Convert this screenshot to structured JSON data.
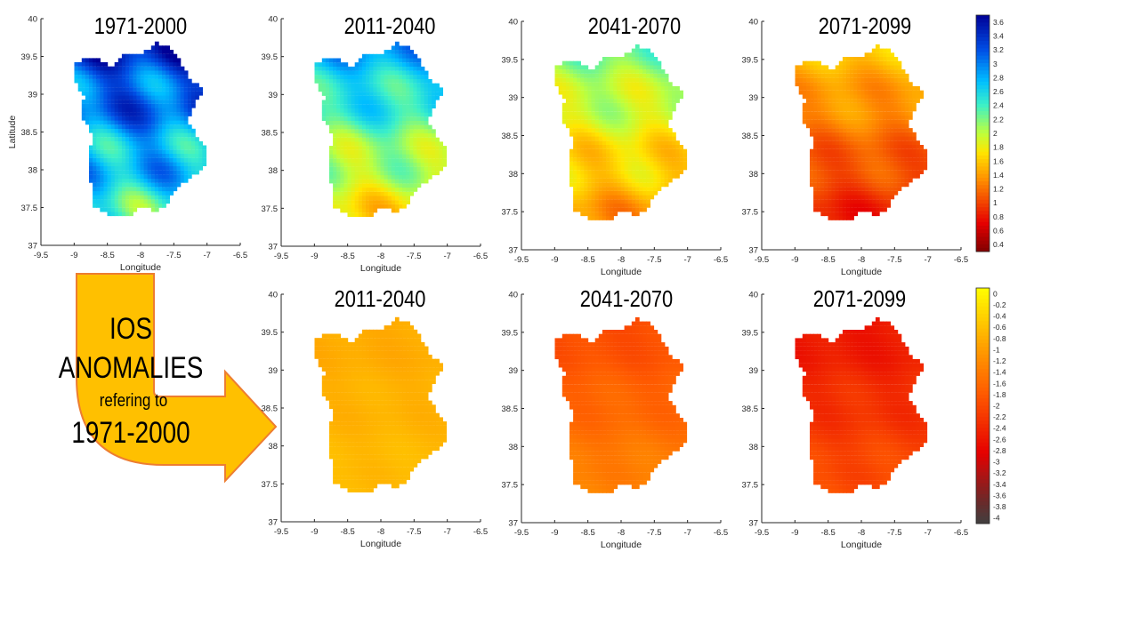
{
  "colors": {
    "background": "#ffffff",
    "arrow_fill": "#ffc000",
    "arrow_stroke": "#ed7d31",
    "text": "#000000",
    "axis": "#262626",
    "tick_text": "#262626"
  },
  "arrow": {
    "line1": "IOS",
    "line2": "ANOMALIES",
    "line3": "refering to",
    "line4": "1971-2000"
  },
  "colorbars": [
    {
      "id": "ios",
      "tick_labels": [
        "3.6",
        "3.4",
        "3.2",
        "3",
        "2.8",
        "2.6",
        "2.4",
        "2.2",
        "2",
        "1.8",
        "1.6",
        "1.4",
        "1.2",
        "1",
        "0.8",
        "0.6",
        "0.4"
      ],
      "range": [
        0.4,
        3.6
      ],
      "colormap": "jet"
    },
    {
      "id": "anomaly",
      "tick_labels": [
        "0",
        "-0.2",
        "-0.4",
        "-0.6",
        "-0.8",
        "-1",
        "-1.2",
        "-1.4",
        "-1.6",
        "-1.8",
        "-2",
        "-2.2",
        "-2.4",
        "-2.6",
        "-2.8",
        "-3",
        "-3.2",
        "-3.4",
        "-3.6",
        "-3.8",
        "-4"
      ],
      "range": [
        -4,
        0
      ],
      "colormap": "autumn-to-dark"
    }
  ],
  "chart_data": [
    {
      "type": "scatter",
      "title": "1971-2000",
      "xlabel": "Longitude",
      "ylabel": "Latitude",
      "xlim": [
        -9.5,
        -6.5
      ],
      "ylim": [
        37,
        40
      ],
      "xticks": [
        "-9.5",
        "-9",
        "-8.5",
        "-8",
        "-7.5",
        "-7",
        "-6.5"
      ],
      "yticks": [
        "37",
        "37.5",
        "38",
        "38.5",
        "39",
        "39.5",
        "40"
      ],
      "colorbar": "ios",
      "field": {
        "north_value": 3.3,
        "south_value": 2.4,
        "gradient": 0.6
      }
    },
    {
      "type": "scatter",
      "title": "2011-2040",
      "xlabel": "Longitude",
      "ylabel": "",
      "xlim": [
        -9.5,
        -6.5
      ],
      "ylim": [
        37,
        40
      ],
      "xticks": [
        "-9.5",
        "-9",
        "-8.5",
        "-8",
        "-7.5",
        "-7",
        "-6.5"
      ],
      "yticks": [
        "37",
        "37.5",
        "38",
        "38.5",
        "39",
        "39.5",
        "40"
      ],
      "colorbar": "ios",
      "field": {
        "north_value": 2.8,
        "south_value": 1.7,
        "gradient": 0.4
      }
    },
    {
      "type": "scatter",
      "title": "2041-2070",
      "xlabel": "Longitude",
      "ylabel": "",
      "xlim": [
        -9.5,
        -6.5
      ],
      "ylim": [
        37,
        40
      ],
      "xticks": [
        "-9.5",
        "-9",
        "-8.5",
        "-8",
        "-7.5",
        "-7",
        "-6.5"
      ],
      "yticks": [
        "37",
        "37.5",
        "38",
        "38.5",
        "39",
        "39.5",
        "40"
      ],
      "colorbar": "ios",
      "field": {
        "north_value": 2.2,
        "south_value": 1.4,
        "gradient": 0.3
      }
    },
    {
      "type": "scatter",
      "title": "2071-2099",
      "xlabel": "Longitude",
      "ylabel": "",
      "xlim": [
        -9.5,
        -6.5
      ],
      "ylim": [
        37,
        40
      ],
      "xticks": [
        "-9.5",
        "-9",
        "-8.5",
        "-8",
        "-7.5",
        "-7",
        "-6.5"
      ],
      "yticks": [
        "37",
        "37.5",
        "38",
        "38.5",
        "39",
        "39.5",
        "40"
      ],
      "colorbar": "ios",
      "field": {
        "north_value": 1.6,
        "south_value": 0.9,
        "gradient": 0.2
      }
    },
    {
      "type": "scatter",
      "title": "2011-2040",
      "xlabel": "Longitude",
      "ylabel": "",
      "xlim": [
        -9.5,
        -6.5
      ],
      "ylim": [
        37,
        40
      ],
      "xticks": [
        "-9.5",
        "-9",
        "-8.5",
        "-8",
        "-7.5",
        "-7",
        "-6.5"
      ],
      "yticks": [
        "37",
        "37.5",
        "38",
        "38.5",
        "39",
        "39.5",
        "40"
      ],
      "colorbar": "anomaly",
      "field": {
        "north_value": -0.9,
        "south_value": -0.7,
        "gradient": 0.1
      }
    },
    {
      "type": "scatter",
      "title": "2041-2070",
      "xlabel": "Longitude",
      "ylabel": "",
      "xlim": [
        -9.5,
        -6.5
      ],
      "ylim": [
        37,
        40
      ],
      "xticks": [
        "-9.5",
        "-9",
        "-8.5",
        "-8",
        "-7.5",
        "-7",
        "-6.5"
      ],
      "yticks": [
        "37",
        "37.5",
        "38",
        "38.5",
        "39",
        "39.5",
        "40"
      ],
      "colorbar": "anomaly",
      "field": {
        "north_value": -2.0,
        "south_value": -1.3,
        "gradient": 0.15
      }
    },
    {
      "type": "scatter",
      "title": "2071-2099",
      "xlabel": "Longitude",
      "ylabel": "",
      "xlim": [
        -9.5,
        -6.5
      ],
      "ylim": [
        37,
        40
      ],
      "xticks": [
        "-9.5",
        "-9",
        "-8.5",
        "-8",
        "-7.5",
        "-7",
        "-6.5"
      ],
      "yticks": [
        "37",
        "37.5",
        "38",
        "38.5",
        "39",
        "39.5",
        "40"
      ],
      "colorbar": "anomaly",
      "field": {
        "north_value": -2.6,
        "south_value": -1.9,
        "gradient": 0.2
      }
    }
  ]
}
